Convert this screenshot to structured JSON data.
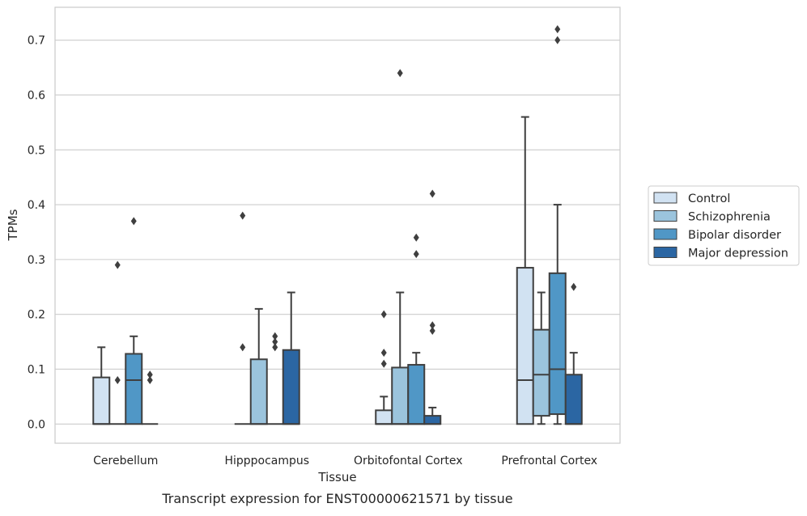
{
  "chart_data": {
    "type": "box",
    "title": "Transcript expression for ENST00000621571 by tissue",
    "xlabel": "Tissue",
    "ylabel": "TPMs",
    "ylim": [
      -0.035,
      0.76
    ],
    "yticks": [
      0.0,
      0.1,
      0.2,
      0.3,
      0.4,
      0.5,
      0.6,
      0.7
    ],
    "ytick_labels": [
      "0.0",
      "0.1",
      "0.2",
      "0.3",
      "0.4",
      "0.5",
      "0.6",
      "0.7"
    ],
    "grid": "horizontal",
    "legend_position": "right",
    "categories": [
      "Cerebellum",
      "Hipppocampus",
      "Orbitofontal Cortex",
      "Prefrontal Cortex"
    ],
    "series": [
      {
        "name": "Control",
        "color": "#d1e2f2",
        "boxes": [
          {
            "min": 0.0,
            "q1": 0.0,
            "median": 0.0,
            "q3": 0.085,
            "max": 0.14,
            "outliers": []
          },
          {
            "min": 0.0,
            "q1": 0.0,
            "median": 0.0,
            "q3": 0.0,
            "max": 0.0,
            "outliers": [
              0.14,
              0.38
            ]
          },
          {
            "min": 0.0,
            "q1": 0.0,
            "median": 0.0,
            "q3": 0.025,
            "max": 0.05,
            "outliers": [
              0.11,
              0.13,
              0.2
            ]
          },
          {
            "min": 0.0,
            "q1": 0.0,
            "median": 0.08,
            "q3": 0.285,
            "max": 0.56,
            "outliers": []
          }
        ]
      },
      {
        "name": "Schizophrenia",
        "color": "#9bc4dd",
        "boxes": [
          {
            "min": 0.0,
            "q1": 0.0,
            "median": 0.0,
            "q3": 0.0,
            "max": 0.0,
            "outliers": [
              0.08,
              0.29
            ]
          },
          {
            "min": 0.0,
            "q1": 0.0,
            "median": 0.0,
            "q3": 0.118,
            "max": 0.21,
            "outliers": []
          },
          {
            "min": 0.0,
            "q1": 0.0,
            "median": 0.0,
            "q3": 0.103,
            "max": 0.24,
            "outliers": [
              0.64
            ]
          },
          {
            "min": 0.0,
            "q1": 0.015,
            "median": 0.09,
            "q3": 0.172,
            "max": 0.24,
            "outliers": []
          }
        ]
      },
      {
        "name": "Bipolar disorder",
        "color": "#5097c6",
        "boxes": [
          {
            "min": 0.0,
            "q1": 0.0,
            "median": 0.08,
            "q3": 0.128,
            "max": 0.16,
            "outliers": [
              0.37
            ]
          },
          {
            "min": 0.0,
            "q1": 0.0,
            "median": 0.0,
            "q3": 0.0,
            "max": 0.0,
            "outliers": [
              0.14,
              0.15,
              0.16
            ]
          },
          {
            "min": 0.0,
            "q1": 0.0,
            "median": 0.0,
            "q3": 0.108,
            "max": 0.13,
            "outliers": [
              0.31,
              0.34
            ]
          },
          {
            "min": 0.0,
            "q1": 0.018,
            "median": 0.1,
            "q3": 0.275,
            "max": 0.4,
            "outliers": [
              0.7,
              0.72
            ]
          }
        ]
      },
      {
        "name": "Major depression",
        "color": "#2b66a3",
        "boxes": [
          {
            "min": 0.0,
            "q1": 0.0,
            "median": 0.0,
            "q3": 0.0,
            "max": 0.0,
            "outliers": [
              0.08,
              0.09
            ]
          },
          {
            "min": 0.0,
            "q1": 0.0,
            "median": 0.0,
            "q3": 0.135,
            "max": 0.24,
            "outliers": []
          },
          {
            "min": 0.0,
            "q1": 0.0,
            "median": 0.0,
            "q3": 0.015,
            "max": 0.03,
            "outliers": [
              0.17,
              0.18,
              0.42
            ]
          },
          {
            "min": 0.0,
            "q1": 0.0,
            "median": 0.0,
            "q3": 0.09,
            "max": 0.13,
            "outliers": [
              0.25
            ]
          }
        ]
      }
    ]
  }
}
